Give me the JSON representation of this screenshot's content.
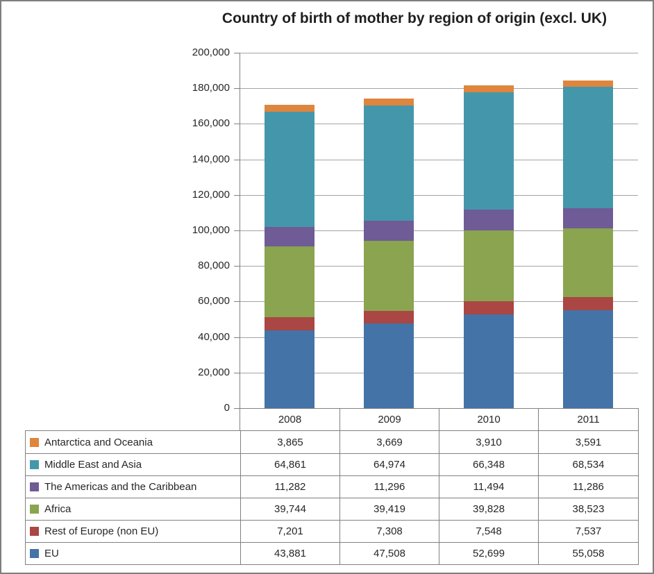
{
  "frame": {
    "border_color": "#7f7f7f",
    "background": "#ffffff"
  },
  "title": "Country of birth of mother by region of origin (excl. UK)",
  "chart_data": {
    "type": "bar",
    "stacked": true,
    "title": "Country of birth of mother by region of origin (excl. UK)",
    "categories": [
      "2008",
      "2009",
      "2010",
      "2011"
    ],
    "series": [
      {
        "name": "EU",
        "color": "#4473A8",
        "values": [
          43881,
          47508,
          52699,
          55058
        ]
      },
      {
        "name": "Rest of Europe (non EU)",
        "color": "#AA4643",
        "values": [
          7201,
          7308,
          7548,
          7537
        ]
      },
      {
        "name": "Africa",
        "color": "#8AA450",
        "values": [
          39744,
          39419,
          39828,
          38523
        ]
      },
      {
        "name": "The Americas and the Caribbean",
        "color": "#6F5B96",
        "values": [
          11282,
          11296,
          11494,
          11286
        ]
      },
      {
        "name": "Middle East and Asia",
        "color": "#4497AB",
        "values": [
          64861,
          64974,
          66348,
          68534
        ]
      },
      {
        "name": "Antarctica and Oceania",
        "color": "#DE853E",
        "values": [
          3865,
          3669,
          3910,
          3591
        ]
      }
    ],
    "xlabel": "",
    "ylabel": "",
    "ylim": [
      0,
      200000
    ],
    "ytick_interval": 20000,
    "ytick_labels": [
      "0",
      "20,000",
      "40,000",
      "60,000",
      "80,000",
      "100,000",
      "120,000",
      "140,000",
      "160,000",
      "180,000",
      "200,000"
    ],
    "grid": true,
    "gridline_color": "#a3a3a3",
    "axis_color": "#808080",
    "legend_position": "bottom-data-table"
  },
  "data_table": {
    "year_headers": [
      "2008",
      "2009",
      "2010",
      "2011"
    ],
    "rows": [
      {
        "label": "Antarctica and Oceania",
        "swatch_color": "#DE853E",
        "values": [
          "3,865",
          "3,669",
          "3,910",
          "3,591"
        ]
      },
      {
        "label": "Middle East and Asia",
        "swatch_color": "#4497AB",
        "values": [
          "64,861",
          "64,974",
          "66,348",
          "68,534"
        ]
      },
      {
        "label": "The Americas and the Caribbean",
        "swatch_color": "#6F5B96",
        "values": [
          "11,282",
          "11,296",
          "11,494",
          "11,286"
        ]
      },
      {
        "label": "Africa",
        "swatch_color": "#8AA450",
        "values": [
          "39,744",
          "39,419",
          "39,828",
          "38,523"
        ]
      },
      {
        "label": "Rest of Europe (non EU)",
        "swatch_color": "#AA4643",
        "values": [
          "7,201",
          "7,308",
          "7,548",
          "7,537"
        ]
      },
      {
        "label": "EU",
        "swatch_color": "#4473A8",
        "values": [
          "43,881",
          "47,508",
          "52,699",
          "55,058"
        ]
      }
    ]
  }
}
